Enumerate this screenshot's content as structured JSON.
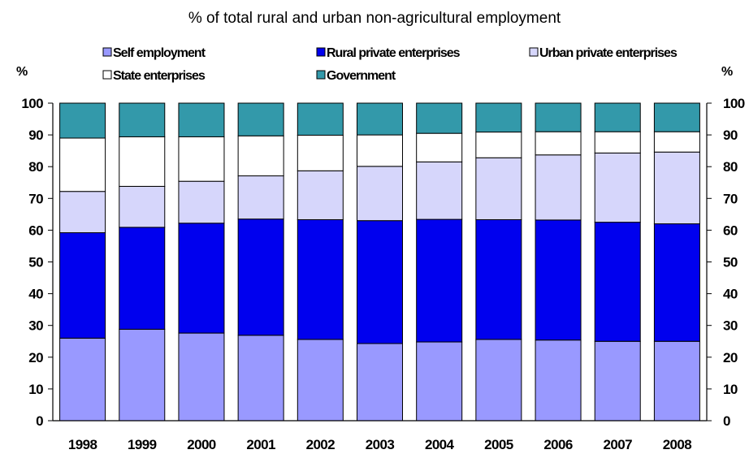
{
  "chart_data": {
    "type": "bar",
    "stacked": true,
    "title": "% of total rural and urban non-agricultural employment",
    "ylabel_left": "%",
    "ylabel_right": "%",
    "ylim": [
      0,
      100
    ],
    "yticks": [
      0,
      10,
      20,
      30,
      40,
      50,
      60,
      70,
      80,
      90,
      100
    ],
    "grid": false,
    "legend_position": "top",
    "categories": [
      "1998",
      "1999",
      "2000",
      "2001",
      "2002",
      "2003",
      "2004",
      "2005",
      "2006",
      "2007",
      "2008"
    ],
    "series": [
      {
        "name": "Self employment",
        "color": "#9999ff",
        "values": [
          26.0,
          28.8,
          27.6,
          26.9,
          25.6,
          24.3,
          24.8,
          25.6,
          25.4,
          25.0,
          25.0
        ]
      },
      {
        "name": "Rural private enterprises",
        "color": "#0000ee",
        "values": [
          33.2,
          32.1,
          34.6,
          36.6,
          37.7,
          38.7,
          38.6,
          37.7,
          37.8,
          37.5,
          37.0
        ]
      },
      {
        "name": "Urban private enterprises",
        "color": "#d6d6fb",
        "values": [
          13.0,
          12.9,
          13.2,
          13.6,
          15.4,
          17.1,
          18.1,
          19.5,
          20.5,
          21.8,
          22.6
        ]
      },
      {
        "name": "State enterprises",
        "color": "#ffffff",
        "values": [
          16.8,
          15.6,
          14.0,
          12.6,
          11.2,
          9.9,
          9.0,
          8.1,
          7.3,
          6.7,
          6.4
        ]
      },
      {
        "name": "Government",
        "color": "#3399aa",
        "values": [
          11.0,
          10.6,
          10.6,
          10.3,
          10.1,
          10.0,
          9.5,
          9.1,
          9.0,
          9.0,
          9.0
        ]
      }
    ]
  }
}
